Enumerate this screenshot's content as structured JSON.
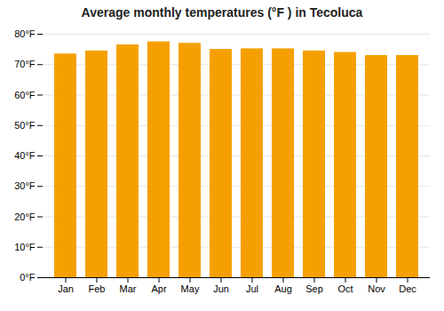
{
  "chart_data": {
    "type": "bar",
    "title": "Average monthly temperatures (°F ) in Tecoluca",
    "categories": [
      "Jan",
      "Feb",
      "Mar",
      "Apr",
      "May",
      "Jun",
      "Jul",
      "Aug",
      "Sep",
      "Oct",
      "Nov",
      "Dec"
    ],
    "values": [
      73.5,
      74.5,
      76.5,
      77.5,
      77.0,
      75.0,
      75.2,
      75.2,
      74.5,
      74.0,
      73.0,
      73.0
    ],
    "color": "#F5A000",
    "ylim": [
      0,
      80
    ],
    "yticks": [
      {
        "value": 0,
        "label": "0°F"
      },
      {
        "value": 10,
        "label": "10°F"
      },
      {
        "value": 20,
        "label": "20°F"
      },
      {
        "value": 30,
        "label": "30°F"
      },
      {
        "value": 40,
        "label": "40°F"
      },
      {
        "value": 50,
        "label": "50°F"
      },
      {
        "value": 60,
        "label": "60°F"
      },
      {
        "value": 70,
        "label": "70°F"
      },
      {
        "value": 80,
        "label": "80°F"
      }
    ],
    "grid": true
  }
}
